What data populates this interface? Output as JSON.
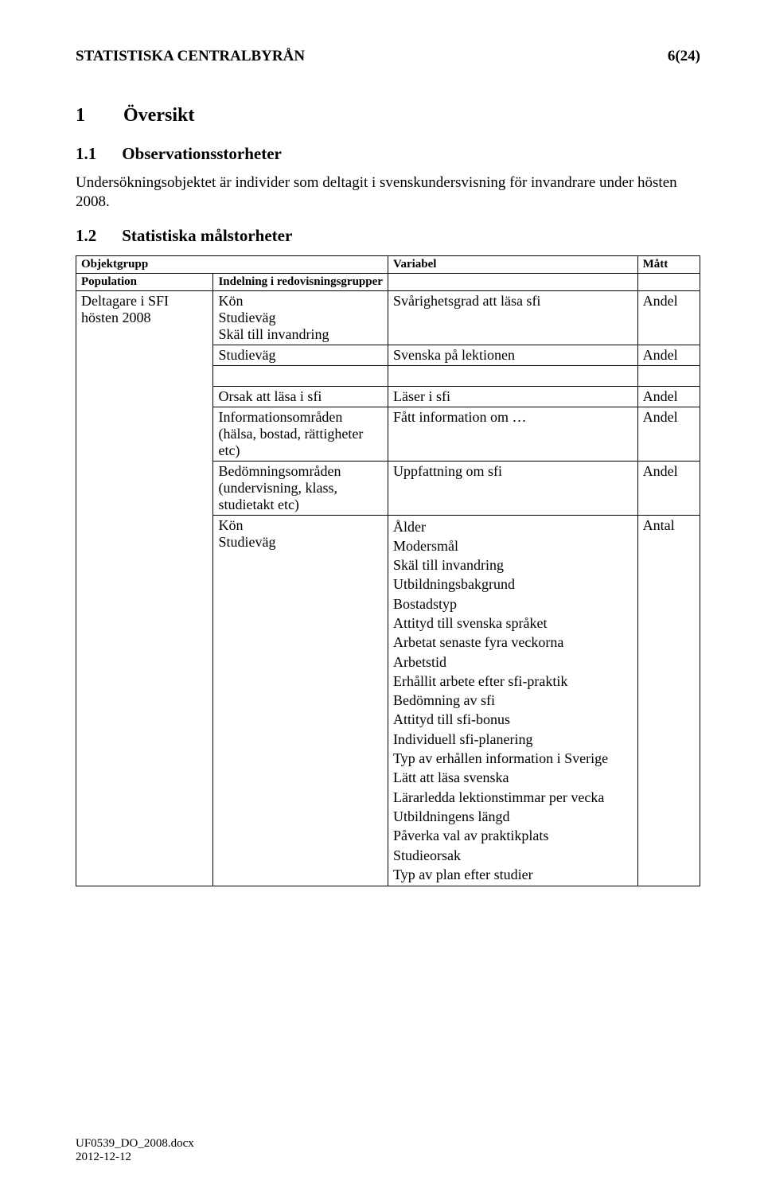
{
  "header": {
    "org": "STATISTISKA CENTRALBYRÅN",
    "pageno": "6(24)"
  },
  "section1": {
    "num": "1",
    "title": "Översikt"
  },
  "section11": {
    "num": "1.1",
    "title": "Observationsstorheter",
    "text": "Undersökningsobjektet är individer som deltagit i svenskundersvisning för invandrare under hösten 2008."
  },
  "section12": {
    "num": "1.2",
    "title": "Statistiska målstorheter"
  },
  "table": {
    "headers": {
      "a": "Objektgrupp",
      "b": "Variabel",
      "c": "Mått"
    },
    "sub_a": "Population",
    "sub_b": "Indelning i redovisningsgrupper",
    "population": "Deltagare i SFI hösten 2008",
    "rows": [
      {
        "b": "Kön\nStudieväg\nSkäl till invandring",
        "c": "Svårighetsgrad att läsa sfi",
        "d": "Andel"
      },
      {
        "b": "Studieväg",
        "c": "Svenska på lektionen",
        "d": "Andel"
      },
      {
        "b": "Orsak att läsa i sfi",
        "c": "Läser i sfi",
        "d": "Andel"
      },
      {
        "b": "Informationsområden (hälsa, bostad, rättigheter etc)",
        "c": "Fått information om …",
        "d": "Andel"
      },
      {
        "b": "Bedömningsområden (undervisning, klass, studietakt etc)",
        "c": "Uppfattning om sfi",
        "d": "Andel"
      },
      {
        "b": "Kön\nStudieväg",
        "d": "Antal",
        "c_list": [
          "Ålder",
          "Modersmål",
          "Skäl till invandring",
          "Utbildningsbakgrund",
          "Bostadstyp",
          "Attityd till svenska språket",
          "Arbetat senaste fyra veckorna",
          "Arbetstid",
          "Erhållit arbete efter sfi-praktik",
          "Bedömning av sfi",
          "Attityd till sfi-bonus",
          "Individuell sfi-planering",
          "Typ av erhållen information i Sverige",
          "Lätt att läsa svenska",
          "Lärarledda lektionstimmar per vecka",
          "Utbildningens längd",
          "Påverka val av praktikplats",
          "Studieorsak",
          "Typ av plan efter studier"
        ]
      }
    ]
  },
  "footer": {
    "filename": "UF0539_DO_2008.docx",
    "date": "2012-12-12"
  }
}
